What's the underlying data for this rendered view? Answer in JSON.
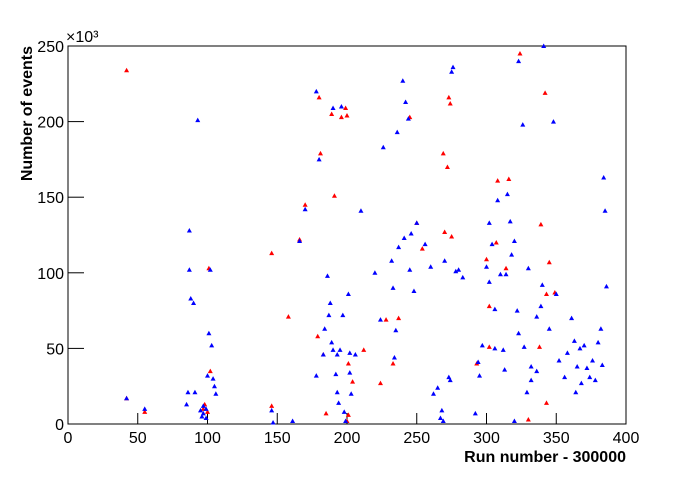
{
  "chart_data": {
    "type": "scatter",
    "x_label": "Run number - 300000",
    "y_label": "Number of events",
    "y_multiplier": "×10³",
    "xlim": [
      0,
      400
    ],
    "ylim": [
      0,
      250
    ],
    "xticks": [
      0,
      50,
      100,
      150,
      200,
      250,
      300,
      350,
      400
    ],
    "yticks": [
      0,
      50,
      100,
      150,
      200,
      250
    ],
    "series": [
      {
        "color": "#ff0000",
        "x": [
          42,
          42,
          55,
          97,
          98,
          100,
          101,
          102,
          146,
          146,
          158,
          166,
          170,
          179,
          180,
          181,
          183,
          185,
          189,
          191,
          196,
          199,
          200,
          200,
          201,
          201,
          204,
          212,
          224,
          228,
          233,
          237,
          245,
          250,
          254,
          269,
          270,
          272,
          273,
          274,
          275,
          293,
          300,
          302,
          302,
          307,
          308,
          314,
          316,
          324,
          330,
          338,
          339,
          342,
          343,
          343,
          345,
          349
        ],
        "values": [
          234,
          17,
          8,
          10,
          13,
          8,
          103,
          35,
          113,
          12,
          71,
          122,
          145,
          58,
          216,
          179,
          46,
          7,
          205,
          151,
          203,
          209,
          2,
          204,
          40,
          6,
          28,
          49,
          27,
          69,
          40,
          70,
          203,
          133,
          116,
          179,
          127,
          170,
          216,
          212,
          124,
          40,
          109,
          78,
          51,
          120,
          161,
          103,
          162,
          245,
          3,
          51,
          132,
          219,
          86,
          14,
          107,
          87
        ]
      },
      {
        "color": "#0000ff",
        "x": [
          42,
          55,
          85,
          86,
          87,
          87,
          88,
          90,
          91,
          93,
          95,
          96,
          97,
          97,
          99,
          99,
          100,
          101,
          102,
          103,
          104,
          105,
          106,
          146,
          147,
          161,
          166,
          170,
          178,
          178,
          180,
          183,
          184,
          186,
          187,
          188,
          189,
          190,
          190,
          192,
          193,
          193,
          194,
          195,
          196,
          197,
          198,
          199,
          201,
          202,
          202,
          203,
          206,
          210,
          220,
          224,
          226,
          232,
          233,
          234,
          235,
          236,
          237,
          240,
          241,
          242,
          244,
          245,
          246,
          248,
          250,
          256,
          260,
          262,
          265,
          267,
          268,
          269,
          270,
          273,
          274,
          275,
          276,
          278,
          280,
          283,
          292,
          294,
          295,
          297,
          300,
          302,
          302,
          304,
          306,
          306,
          308,
          310,
          312,
          313,
          314,
          315,
          317,
          318,
          320,
          320,
          322,
          323,
          323,
          326,
          327,
          329,
          330,
          332,
          332,
          336,
          336,
          339,
          340,
          341,
          345,
          348,
          350,
          352,
          356,
          358,
          361,
          363,
          364,
          365,
          367,
          368,
          370,
          372,
          374,
          376,
          378,
          380,
          382,
          383,
          384,
          385,
          386
        ],
        "values": [
          17,
          10,
          13,
          21,
          102,
          128,
          83,
          80,
          21,
          201,
          9,
          5,
          12,
          7,
          10,
          4,
          32,
          60,
          102,
          52,
          30,
          25,
          20,
          9,
          1,
          2,
          121,
          142,
          220,
          32,
          175,
          46,
          63,
          98,
          72,
          80,
          54,
          49,
          209,
          33,
          46,
          21,
          14,
          49,
          210,
          72,
          8,
          2,
          86,
          47,
          34,
          20,
          46,
          141,
          100,
          69,
          183,
          108,
          90,
          44,
          62,
          193,
          117,
          227,
          123,
          213,
          202,
          102,
          126,
          88,
          133,
          119,
          104,
          20,
          24,
          4,
          9,
          2,
          108,
          31,
          29,
          233,
          236,
          101,
          102,
          97,
          7,
          41,
          32,
          52,
          104,
          94,
          133,
          119,
          76,
          50,
          148,
          99,
          49,
          36,
          99,
          152,
          134,
          112,
          2,
          121,
          75,
          60,
          240,
          198,
          51,
          21,
          103,
          29,
          38,
          35,
          71,
          78,
          92,
          250,
          63,
          200,
          86,
          42,
          31,
          47,
          70,
          55,
          21,
          38,
          50,
          27,
          52,
          37,
          31,
          42,
          29,
          54,
          63,
          39,
          163,
          141,
          91
        ]
      }
    ]
  }
}
